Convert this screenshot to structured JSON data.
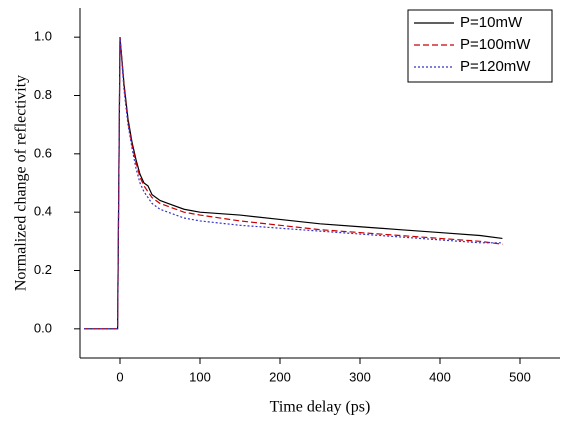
{
  "chart_data": {
    "type": "line",
    "x_label": "Time delay (ps)",
    "y_label": "Normalized change of reflectivity",
    "x": [
      -45,
      -3,
      0,
      5,
      10,
      15,
      20,
      25,
      30,
      35,
      40,
      50,
      60,
      80,
      100,
      150,
      200,
      250,
      300,
      350,
      400,
      450,
      478
    ],
    "series": [
      {
        "name": "P=10mW",
        "color": "#000000",
        "dash": "solid",
        "values": [
          0,
          0,
          1.0,
          0.84,
          0.72,
          0.64,
          0.58,
          0.53,
          0.5,
          0.49,
          0.46,
          0.44,
          0.43,
          0.41,
          0.4,
          0.39,
          0.375,
          0.36,
          0.35,
          0.34,
          0.33,
          0.32,
          0.31
        ]
      },
      {
        "name": "P=100mW",
        "color": "#cc0000",
        "dash": "dashed",
        "values": [
          0,
          0,
          1.0,
          0.83,
          0.71,
          0.63,
          0.57,
          0.52,
          0.49,
          0.47,
          0.45,
          0.43,
          0.42,
          0.4,
          0.39,
          0.37,
          0.355,
          0.34,
          0.33,
          0.32,
          0.31,
          0.3,
          0.29
        ]
      },
      {
        "name": "P=120mW",
        "color": "#3333cc",
        "dash": "dotted",
        "values": [
          0,
          0,
          1.0,
          0.82,
          0.7,
          0.62,
          0.55,
          0.5,
          0.47,
          0.45,
          0.43,
          0.41,
          0.4,
          0.38,
          0.37,
          0.355,
          0.345,
          0.335,
          0.325,
          0.315,
          0.305,
          0.295,
          0.295
        ]
      }
    ],
    "xlim": [
      -50,
      550
    ],
    "xticks": [
      0,
      100,
      200,
      300,
      400,
      500
    ],
    "ylim": [
      -0.1,
      1.1
    ],
    "yticks": [
      {
        "value": 0,
        "label": "0.0"
      },
      0.2,
      0.4,
      0.6,
      0.8,
      {
        "value": 1,
        "label": "1.0"
      }
    ],
    "legend": "upper right",
    "grid": false
  }
}
